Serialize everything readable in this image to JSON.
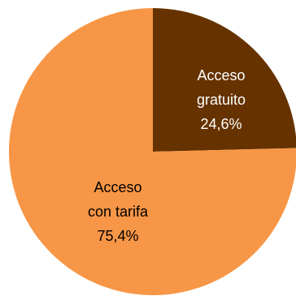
{
  "chart_data": {
    "type": "pie",
    "title": "",
    "slices": [
      {
        "label_line1": "Acceso",
        "label_line2": "gratuito",
        "value_label": "24,6%",
        "value": 24.6,
        "color": "#663300",
        "text_color": "#ffffff"
      },
      {
        "label_line1": "Acceso",
        "label_line2": "con tarifa",
        "value_label": "75,4%",
        "value": 75.4,
        "color": "#f79646",
        "text_color": "#000000"
      }
    ],
    "start_angle_deg": 0,
    "direction": "clockwise",
    "legend": "none"
  }
}
